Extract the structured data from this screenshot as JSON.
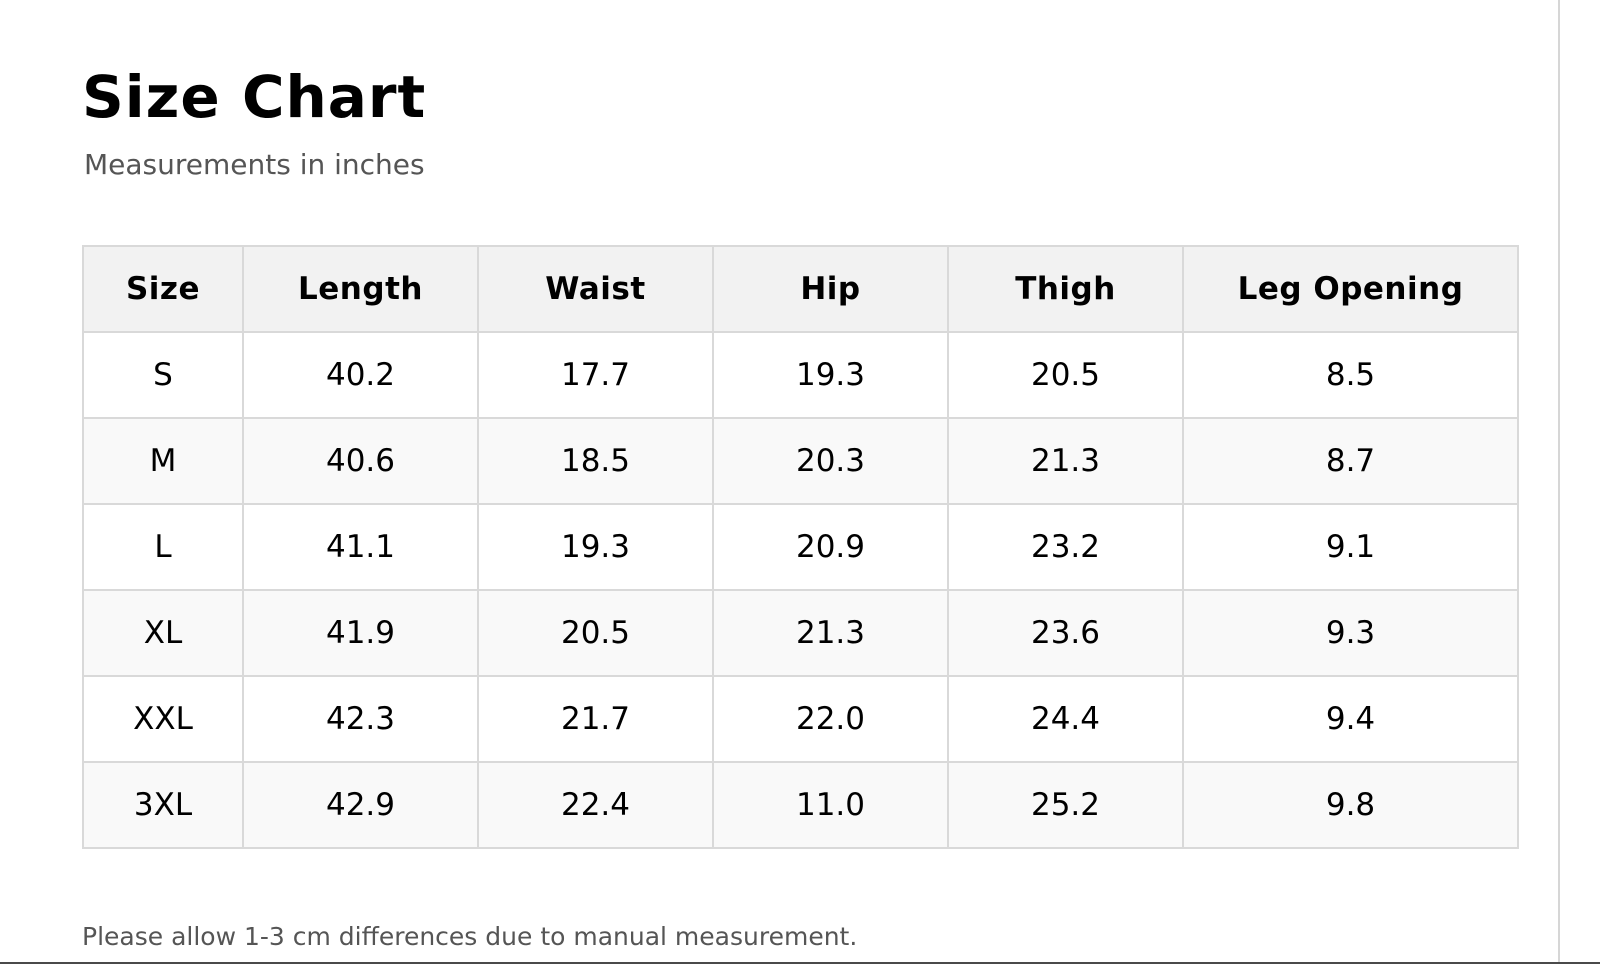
{
  "title": "Size Chart",
  "subtitle": "Measurements in inches",
  "table": {
    "headers": [
      "Size",
      "Length",
      "Waist",
      "Hip",
      "Thigh",
      "Leg Opening"
    ],
    "rows": [
      [
        "S",
        "40.2",
        "17.7",
        "19.3",
        "20.5",
        "8.5"
      ],
      [
        "M",
        "40.6",
        "18.5",
        "20.3",
        "21.3",
        "8.7"
      ],
      [
        "L",
        "41.1",
        "19.3",
        "20.9",
        "23.2",
        "9.1"
      ],
      [
        "XL",
        "41.9",
        "20.5",
        "21.3",
        "23.6",
        "9.3"
      ],
      [
        "XXL",
        "42.3",
        "21.7",
        "22.0",
        "24.4",
        "9.4"
      ],
      [
        "3XL",
        "42.9",
        "22.4",
        "11.0",
        "25.2",
        "9.8"
      ]
    ]
  },
  "note": "Please allow 1-3 cm differences due to manual measurement.",
  "colors": {
    "header_bg": "#f2f2f2",
    "border": "#d9d9d9",
    "alt_row_bg": "#f9f9f9",
    "muted_text": "#555555"
  }
}
